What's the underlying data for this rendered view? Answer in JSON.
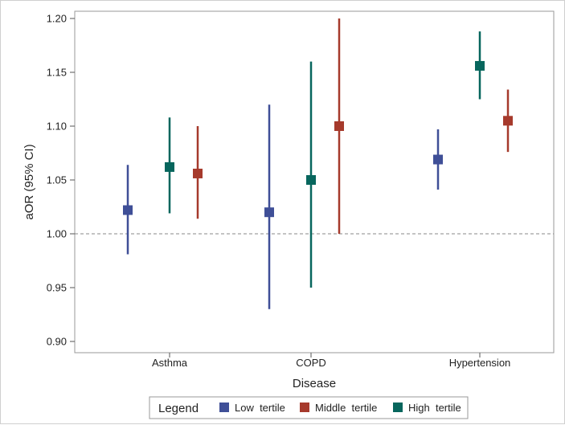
{
  "chart_data": {
    "type": "forest",
    "xlabel": "Disease",
    "ylabel": "aOR (95% CI)",
    "ylim": [
      0.9,
      1.2
    ],
    "yticks": [
      "0.90",
      "0.95",
      "1.00",
      "1.05",
      "1.10",
      "1.15",
      "1.20"
    ],
    "reference_line": 1.0,
    "categories": [
      "Asthma",
      "COPD",
      "Hypertension"
    ],
    "legend_title": "Legend",
    "legend_position": "bottom",
    "series": [
      {
        "name": "Low  tertile",
        "color": "#3f4f97",
        "estimates": [
          1.022,
          1.02,
          1.069
        ],
        "lower": [
          0.981,
          0.93,
          1.041
        ],
        "upper": [
          1.064,
          1.12,
          1.097
        ]
      },
      {
        "name": "Middle  tertile",
        "color": "#a63a2c",
        "estimates": [
          1.056,
          1.1,
          1.105
        ],
        "lower": [
          1.014,
          1.0,
          1.076
        ],
        "upper": [
          1.1,
          1.2,
          1.134
        ]
      },
      {
        "name": "High  tertile",
        "color": "#07665d",
        "estimates": [
          1.062,
          1.05,
          1.156
        ],
        "lower": [
          1.019,
          0.95,
          1.125
        ],
        "upper": [
          1.108,
          1.16,
          1.188
        ]
      }
    ]
  }
}
